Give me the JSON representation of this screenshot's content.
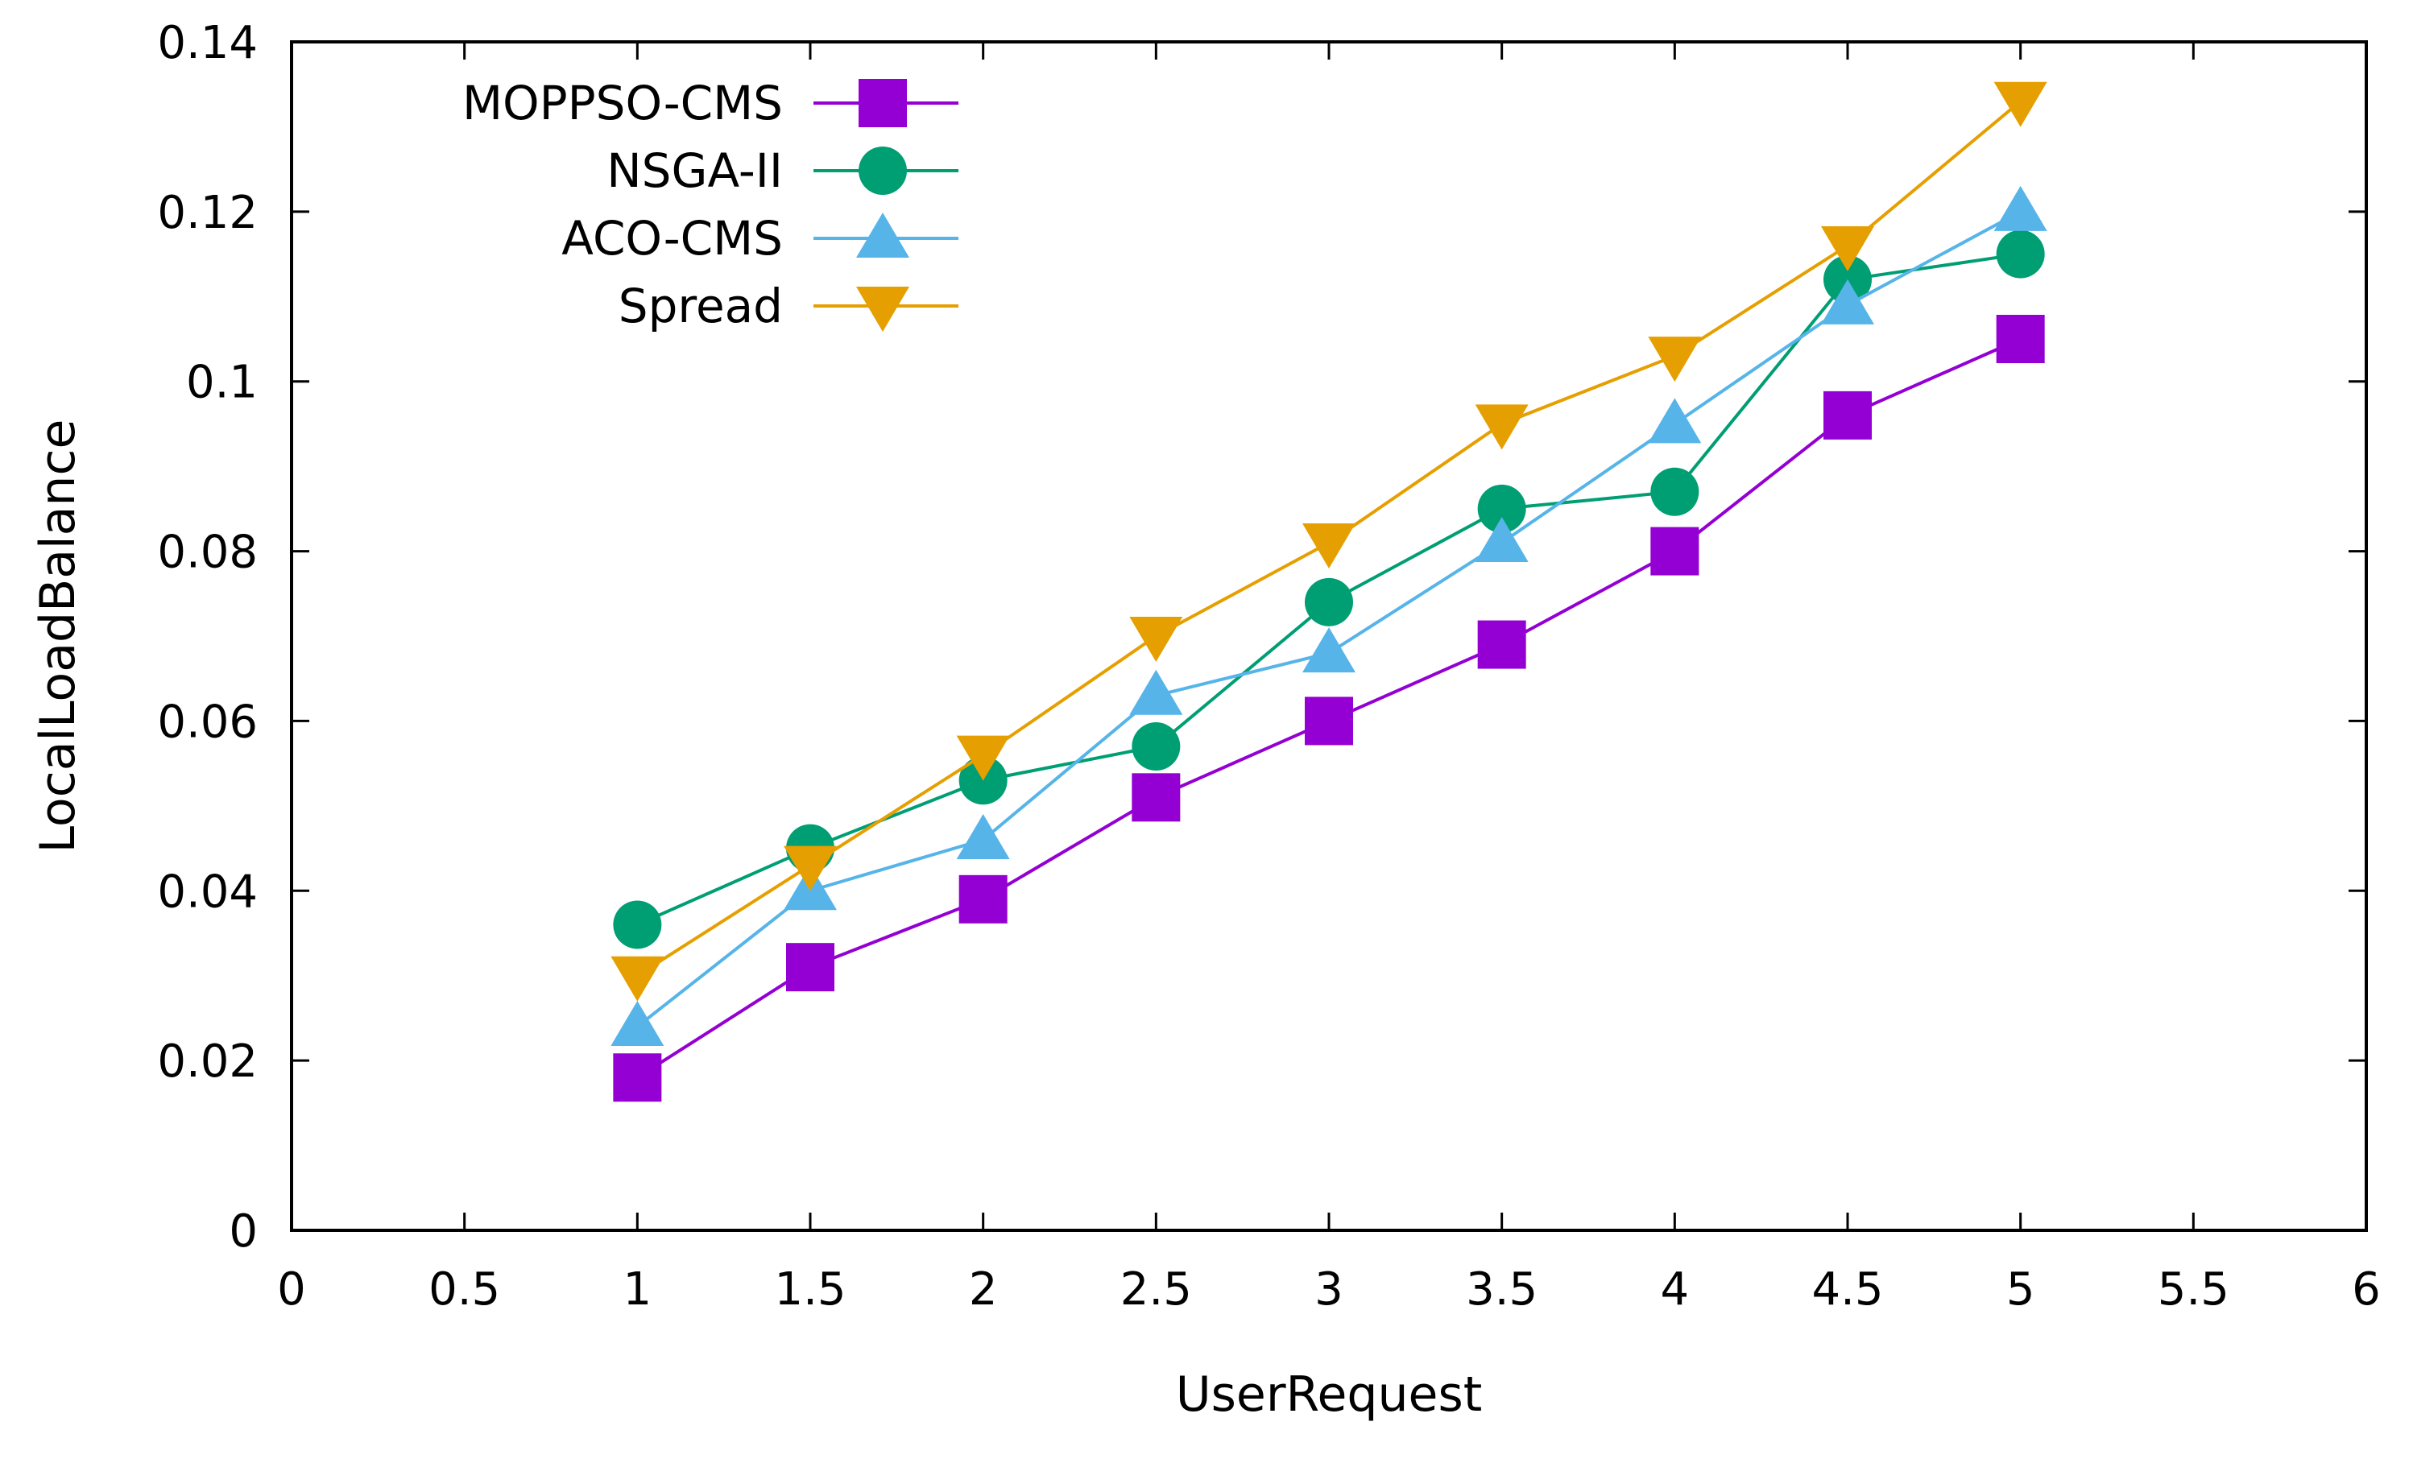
{
  "chart_data": {
    "type": "line",
    "title": "",
    "xlabel": "UserRequest",
    "ylabel": "LocalLoadBalance",
    "xlim": [
      0,
      6
    ],
    "ylim": [
      0,
      0.14
    ],
    "grid": false,
    "legend_position": "top-left",
    "x_ticks": [
      "0",
      "0.5",
      "1",
      "1.5",
      "2",
      "2.5",
      "3",
      "3.5",
      "4",
      "4.5",
      "5",
      "5.5",
      "6"
    ],
    "y_ticks": [
      "0",
      "0.02",
      "0.04",
      "0.06",
      "0.08",
      "0.1",
      "0.12",
      "0.14"
    ],
    "x": [
      1,
      1.5,
      2,
      2.5,
      3,
      3.5,
      4,
      4.5,
      5
    ],
    "series": [
      {
        "name": "MOPPSO-CMS",
        "color": "#9400d3",
        "marker": "square",
        "values": [
          0.018,
          0.031,
          0.039,
          0.051,
          0.06,
          0.069,
          0.08,
          0.096,
          0.105
        ]
      },
      {
        "name": "NSGA-II",
        "color": "#009e73",
        "marker": "circle",
        "values": [
          0.036,
          0.045,
          0.053,
          0.057,
          0.074,
          0.085,
          0.087,
          0.112,
          0.115
        ]
      },
      {
        "name": "ACO-CMS",
        "color": "#56b4e9",
        "marker": "triangle-up",
        "values": [
          0.024,
          0.04,
          0.046,
          0.063,
          0.068,
          0.081,
          0.095,
          0.109,
          0.12
        ]
      },
      {
        "name": "Spread",
        "color": "#e69f00",
        "marker": "triangle-down",
        "values": [
          0.03,
          0.043,
          0.056,
          0.07,
          0.081,
          0.095,
          0.103,
          0.116,
          0.133
        ]
      }
    ]
  }
}
